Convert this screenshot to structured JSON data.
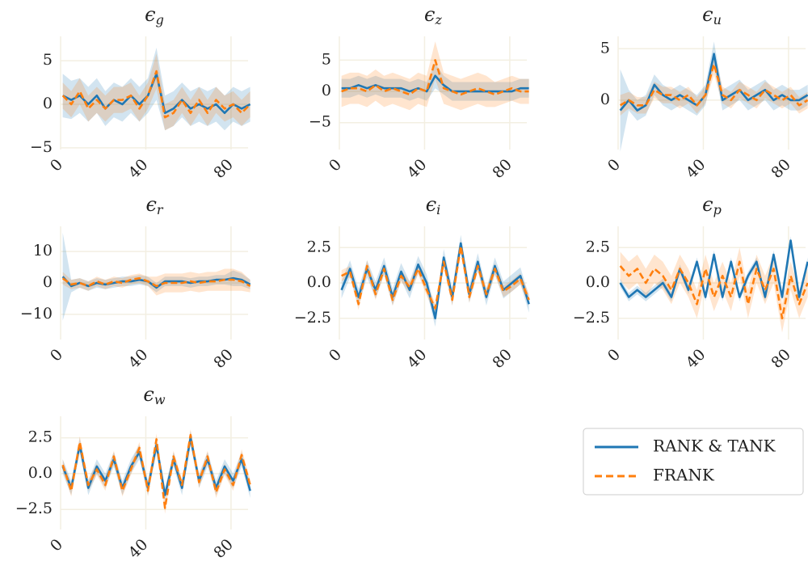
{
  "chart_data": [
    {
      "type": "line",
      "title": "ϵ",
      "title_subscript": "g",
      "x": [
        1,
        5,
        9,
        13,
        17,
        21,
        25,
        29,
        33,
        37,
        41,
        45,
        49,
        53,
        57,
        61,
        65,
        69,
        73,
        77,
        81,
        85,
        89
      ],
      "xlim": [
        0,
        88
      ],
      "xticks": [
        0,
        40,
        80
      ],
      "ylim": [
        -5.2,
        7.8
      ],
      "yticks": [
        {
          "value": -5,
          "label": "−5"
        },
        0,
        5
      ],
      "grid": true,
      "series": [
        {
          "name": "RANK & TANK",
          "color": "#1f77b4",
          "dashed": false,
          "values": [
            1,
            0.5,
            1,
            0,
            1,
            -0.5,
            0.5,
            0,
            1,
            0,
            1,
            3.5,
            -1,
            -0.5,
            0.5,
            -0.5,
            0,
            -0.5,
            0,
            -1,
            0,
            -0.5,
            0
          ],
          "errors": [
            2.5,
            2.2,
            2,
            2,
            2,
            2,
            2,
            2,
            2,
            2,
            2,
            3,
            2,
            2,
            2,
            2,
            2,
            2,
            2,
            2,
            2,
            2,
            2
          ]
        },
        {
          "name": "FRANK",
          "color": "#ff7f0e",
          "dashed": true,
          "values": [
            1,
            0,
            1.5,
            -0.5,
            0.5,
            -0.5,
            0.5,
            0.5,
            1,
            -0.5,
            1,
            3.8,
            -1.5,
            -1,
            0.5,
            -1,
            0.5,
            -1,
            0.5,
            -0.5,
            0,
            -1,
            0
          ],
          "errors": [
            1.5,
            1.5,
            1.5,
            1.5,
            1.5,
            1.5,
            1.5,
            1.5,
            1.5,
            1.5,
            1.5,
            2,
            1.5,
            1.5,
            1.5,
            1.5,
            1.5,
            1.5,
            1.5,
            1.5,
            1.5,
            1.5,
            1.5
          ]
        }
      ]
    },
    {
      "type": "line",
      "title": "ϵ",
      "title_subscript": "z",
      "x": [
        1,
        5,
        9,
        13,
        17,
        21,
        25,
        29,
        33,
        37,
        41,
        45,
        49,
        53,
        57,
        61,
        65,
        69,
        73,
        77,
        81,
        85,
        89
      ],
      "xlim": [
        0,
        88
      ],
      "xticks": [
        0,
        40,
        80
      ],
      "ylim": [
        -9.3,
        8.8
      ],
      "yticks": [
        {
          "value": -5,
          "label": "−5"
        },
        0,
        5
      ],
      "grid": true,
      "series": [
        {
          "color": "#1f77b4",
          "dashed": false,
          "values": [
            0.5,
            0.5,
            1,
            0.5,
            1,
            0.5,
            0.5,
            0.5,
            0,
            0.5,
            0,
            2.5,
            1,
            0,
            0,
            0,
            0,
            0,
            0,
            0,
            0,
            0.5,
            0.5
          ],
          "errors": [
            1.5,
            1.5,
            1.5,
            1.5,
            1.5,
            1.5,
            1.5,
            1.5,
            1.5,
            1.5,
            1.5,
            2,
            1.5,
            1.5,
            1.5,
            1.5,
            1.5,
            1.5,
            1.5,
            1.5,
            1.5,
            1.5,
            1.5
          ]
        },
        {
          "color": "#ff7f0e",
          "dashed": true,
          "values": [
            0,
            0.5,
            0.5,
            0,
            1,
            0,
            0.5,
            0,
            -0.5,
            0.5,
            0,
            5,
            0.5,
            0,
            -0.5,
            0,
            0.5,
            0,
            -0.5,
            0,
            0.5,
            0,
            0
          ],
          "errors": [
            2.5,
            2.5,
            2.5,
            2.5,
            2.5,
            2.5,
            2.5,
            2.5,
            2.5,
            2.5,
            2.5,
            3,
            2.5,
            2.5,
            2.5,
            2.5,
            2.5,
            2.5,
            2,
            2,
            2,
            2,
            2
          ]
        }
      ]
    },
    {
      "type": "line",
      "title": "ϵ",
      "title_subscript": "u",
      "x": [
        1,
        5,
        9,
        13,
        17,
        21,
        25,
        29,
        33,
        37,
        41,
        45,
        49,
        53,
        57,
        61,
        65,
        69,
        73,
        77,
        81,
        85,
        89
      ],
      "xlim": [
        0,
        88
      ],
      "xticks": [
        0,
        40,
        80
      ],
      "ylim": [
        -4.8,
        6.2
      ],
      "yticks": [
        0,
        5
      ],
      "grid": true,
      "series": [
        {
          "color": "#1f77b4",
          "dashed": false,
          "values": [
            -1,
            0,
            -1,
            -0.5,
            1.5,
            0.5,
            0,
            0.5,
            0,
            -0.5,
            0.5,
            4.5,
            0,
            0.5,
            1,
            0,
            0.5,
            1,
            0,
            0.5,
            0,
            0,
            0.5
          ],
          "errors": [
            4,
            1,
            1,
            1,
            1,
            1,
            1,
            1,
            1,
            1,
            1,
            1.2,
            1,
            1,
            1,
            1,
            1,
            1,
            1,
            1,
            1,
            1,
            1
          ]
        },
        {
          "color": "#ff7f0e",
          "dashed": true,
          "values": [
            -0.5,
            0,
            -0.5,
            -0.5,
            1,
            0.5,
            0.5,
            0,
            0.5,
            -0.5,
            0.5,
            3.5,
            0.5,
            0,
            1,
            0.5,
            0,
            1,
            0.5,
            0,
            0.5,
            -0.5,
            0
          ],
          "errors": [
            1,
            0.8,
            0.8,
            0.8,
            0.8,
            0.8,
            0.8,
            0.8,
            0.8,
            0.8,
            0.8,
            1,
            0.8,
            0.8,
            0.8,
            0.8,
            0.8,
            0.8,
            0.8,
            0.8,
            0.8,
            0.8,
            0.8
          ]
        }
      ]
    },
    {
      "type": "line",
      "title": "ϵ",
      "title_subscript": "r",
      "x": [
        1,
        5,
        9,
        13,
        17,
        21,
        25,
        29,
        33,
        37,
        41,
        45,
        49,
        53,
        57,
        61,
        65,
        69,
        73,
        77,
        81,
        85,
        89
      ],
      "xlim": [
        0,
        88
      ],
      "xticks": [
        0,
        40,
        80
      ],
      "ylim": [
        -18,
        18
      ],
      "yticks": [
        {
          "value": -10,
          "label": "−10"
        },
        0,
        10
      ],
      "grid": true,
      "series": [
        {
          "color": "#1f77b4",
          "dashed": false,
          "values": [
            2,
            -1,
            0,
            -1,
            0,
            -0.5,
            0,
            0.5,
            0.5,
            1,
            0.5,
            -1.5,
            0.5,
            0.5,
            0.5,
            0,
            0.5,
            0.5,
            1,
            1,
            1.5,
            1,
            -0.5
          ],
          "errors": [
            14,
            2,
            1.5,
            1.5,
            1.5,
            1.5,
            1.5,
            1.5,
            1.5,
            1.5,
            1.5,
            1.5,
            1.5,
            1.5,
            1.5,
            1.5,
            1.5,
            1.5,
            1.5,
            1.5,
            2.5,
            2,
            1.5
          ]
        },
        {
          "color": "#ff7f0e",
          "dashed": true,
          "values": [
            1.5,
            -0.5,
            0,
            -1,
            0.5,
            -0.5,
            0.5,
            0,
            1,
            1.5,
            0.5,
            -1,
            0,
            0,
            0,
            0.5,
            0,
            0.5,
            0.5,
            1,
            1,
            0.5,
            -1
          ],
          "errors": [
            2,
            1.5,
            1.5,
            1.5,
            1.5,
            1.5,
            1.5,
            1.5,
            1.5,
            1.5,
            1.5,
            3,
            3,
            3,
            3,
            3,
            3,
            3,
            3,
            3.5,
            3.5,
            3,
            2
          ]
        }
      ]
    },
    {
      "type": "line",
      "title": "ϵ",
      "title_subscript": "i",
      "x": [
        1,
        5,
        9,
        13,
        17,
        21,
        25,
        29,
        33,
        37,
        41,
        45,
        49,
        53,
        57,
        61,
        65,
        69,
        73,
        77,
        81,
        85,
        89
      ],
      "xlim": [
        0,
        88
      ],
      "xticks": [
        0,
        40,
        80
      ],
      "ylim": [
        -4,
        4
      ],
      "yticks": [
        {
          "value": -2.5,
          "label": "−2.5"
        },
        {
          "value": 0,
          "label": "0.0"
        },
        2.5
      ],
      "grid": true,
      "series": [
        {
          "color": "#1f77b4",
          "dashed": false,
          "values": [
            -0.5,
            1,
            -1,
            1,
            -0.5,
            1.2,
            -1,
            0.8,
            -0.5,
            1.3,
            0,
            -2.5,
            1.8,
            -1,
            2.8,
            -0.8,
            1.5,
            -1,
            1.2,
            -0.5,
            0,
            0.5,
            -1.5
          ],
          "errors": [
            0.6,
            0.6,
            0.6,
            0.6,
            0.6,
            0.6,
            0.6,
            0.6,
            0.6,
            0.6,
            0.6,
            0.6,
            0.6,
            0.6,
            0.6,
            0.6,
            0.6,
            0.6,
            0.6,
            0.6,
            0.6,
            0.6,
            0.6
          ]
        },
        {
          "color": "#ff7f0e",
          "dashed": true,
          "values": [
            0.5,
            0.8,
            -1.5,
            1.2,
            -0.8,
            1,
            -1.2,
            0.5,
            -0.3,
            1,
            -0.5,
            -1.8,
            1.5,
            -1.2,
            2.6,
            -1,
            1.2,
            -0.8,
            1,
            -0.6,
            -0.2,
            0.3,
            -1.2
          ],
          "errors": [
            0.4,
            0.4,
            0.4,
            0.4,
            0.4,
            0.4,
            0.4,
            0.4,
            0.4,
            0.4,
            0.4,
            0.4,
            0.4,
            0.4,
            0.4,
            0.4,
            0.4,
            0.4,
            0.4,
            0.4,
            0.4,
            0.4,
            0.4
          ]
        }
      ]
    },
    {
      "type": "line",
      "title": "ϵ",
      "title_subscript": "p",
      "x": [
        1,
        5,
        9,
        13,
        17,
        21,
        25,
        29,
        33,
        37,
        41,
        45,
        49,
        53,
        57,
        61,
        65,
        69,
        73,
        77,
        81,
        85,
        89
      ],
      "xlim": [
        0,
        88
      ],
      "xticks": [
        0,
        40,
        80
      ],
      "ylim": [
        -4,
        4
      ],
      "yticks": [
        {
          "value": -2.5,
          "label": "−2.5"
        },
        {
          "value": 0,
          "label": "0.0"
        },
        2.5
      ],
      "grid": true,
      "series": [
        {
          "color": "#1f77b4",
          "dashed": false,
          "values": [
            0,
            -1,
            -0.5,
            -1,
            -0.5,
            0,
            -1,
            1,
            -0.5,
            1.5,
            -1,
            2,
            -1,
            1.5,
            -1,
            0.5,
            1.5,
            -1,
            2,
            -1,
            3,
            -1,
            1.5
          ],
          "errors": [
            0.3,
            0.3,
            0.3,
            0.3,
            0.3,
            0.3,
            0.3,
            0.3,
            0.3,
            0.3,
            0.3,
            0.3,
            0.3,
            0.3,
            0.3,
            0.3,
            0.3,
            0.3,
            0.3,
            0.3,
            0.3,
            0.3,
            0.3
          ]
        },
        {
          "color": "#ff7f0e",
          "dashed": true,
          "values": [
            1.2,
            0.5,
            1,
            0,
            1,
            0.5,
            -0.5,
            1,
            0,
            -1.5,
            1,
            -1,
            0.5,
            -1,
            1.5,
            -1.5,
            1,
            -0.5,
            1,
            -2.5,
            0.5,
            -1.5,
            0
          ],
          "errors": [
            1,
            1,
            1,
            1,
            1,
            1,
            1,
            1,
            1,
            1,
            1,
            1,
            1,
            1,
            1,
            1,
            1,
            1,
            1,
            1,
            1,
            1,
            1
          ]
        }
      ]
    },
    {
      "type": "line",
      "title": "ϵ",
      "title_subscript": "w",
      "x": [
        1,
        5,
        9,
        13,
        17,
        21,
        25,
        29,
        33,
        37,
        41,
        45,
        49,
        53,
        57,
        61,
        65,
        69,
        73,
        77,
        81,
        85,
        89
      ],
      "xlim": [
        0,
        88
      ],
      "xticks": [
        0,
        40,
        80
      ],
      "ylim": [
        -3.9,
        4
      ],
      "yticks": [
        {
          "value": -2.5,
          "label": "−2.5"
        },
        {
          "value": 0,
          "label": "0.0"
        },
        2.5
      ],
      "grid": true,
      "series": [
        {
          "color": "#1f77b4",
          "dashed": false,
          "values": [
            0.5,
            -1,
            2,
            -1,
            0.5,
            -0.5,
            1,
            -1,
            0.5,
            1.5,
            -1,
            2,
            -1.5,
            1,
            -1,
            2.5,
            -0.5,
            1,
            -1,
            0.5,
            -0.5,
            1,
            -1.2
          ],
          "errors": [
            0.5,
            0.5,
            0.5,
            0.5,
            0.5,
            0.5,
            0.5,
            0.5,
            0.5,
            0.5,
            0.5,
            0.5,
            0.5,
            0.5,
            0.5,
            0.5,
            0.5,
            0.5,
            0.5,
            0.5,
            0.5,
            0.5,
            0.5
          ]
        },
        {
          "color": "#ff7f0e",
          "dashed": true,
          "values": [
            0.6,
            -1.2,
            2.2,
            -0.8,
            0.3,
            -0.8,
            1.2,
            -1.2,
            0.3,
            1.8,
            -1.2,
            2.4,
            -2.4,
            1.2,
            -0.8,
            2.7,
            -0.6,
            1.2,
            -1.3,
            0.3,
            -0.8,
            1.3,
            -0.8
          ],
          "errors": [
            0.4,
            0.4,
            0.4,
            0.4,
            0.4,
            0.4,
            0.4,
            0.4,
            0.4,
            0.4,
            0.4,
            0.4,
            0.4,
            0.4,
            0.4,
            0.4,
            0.4,
            0.4,
            0.4,
            0.4,
            0.4,
            0.4,
            0.4
          ]
        }
      ]
    }
  ]
}
